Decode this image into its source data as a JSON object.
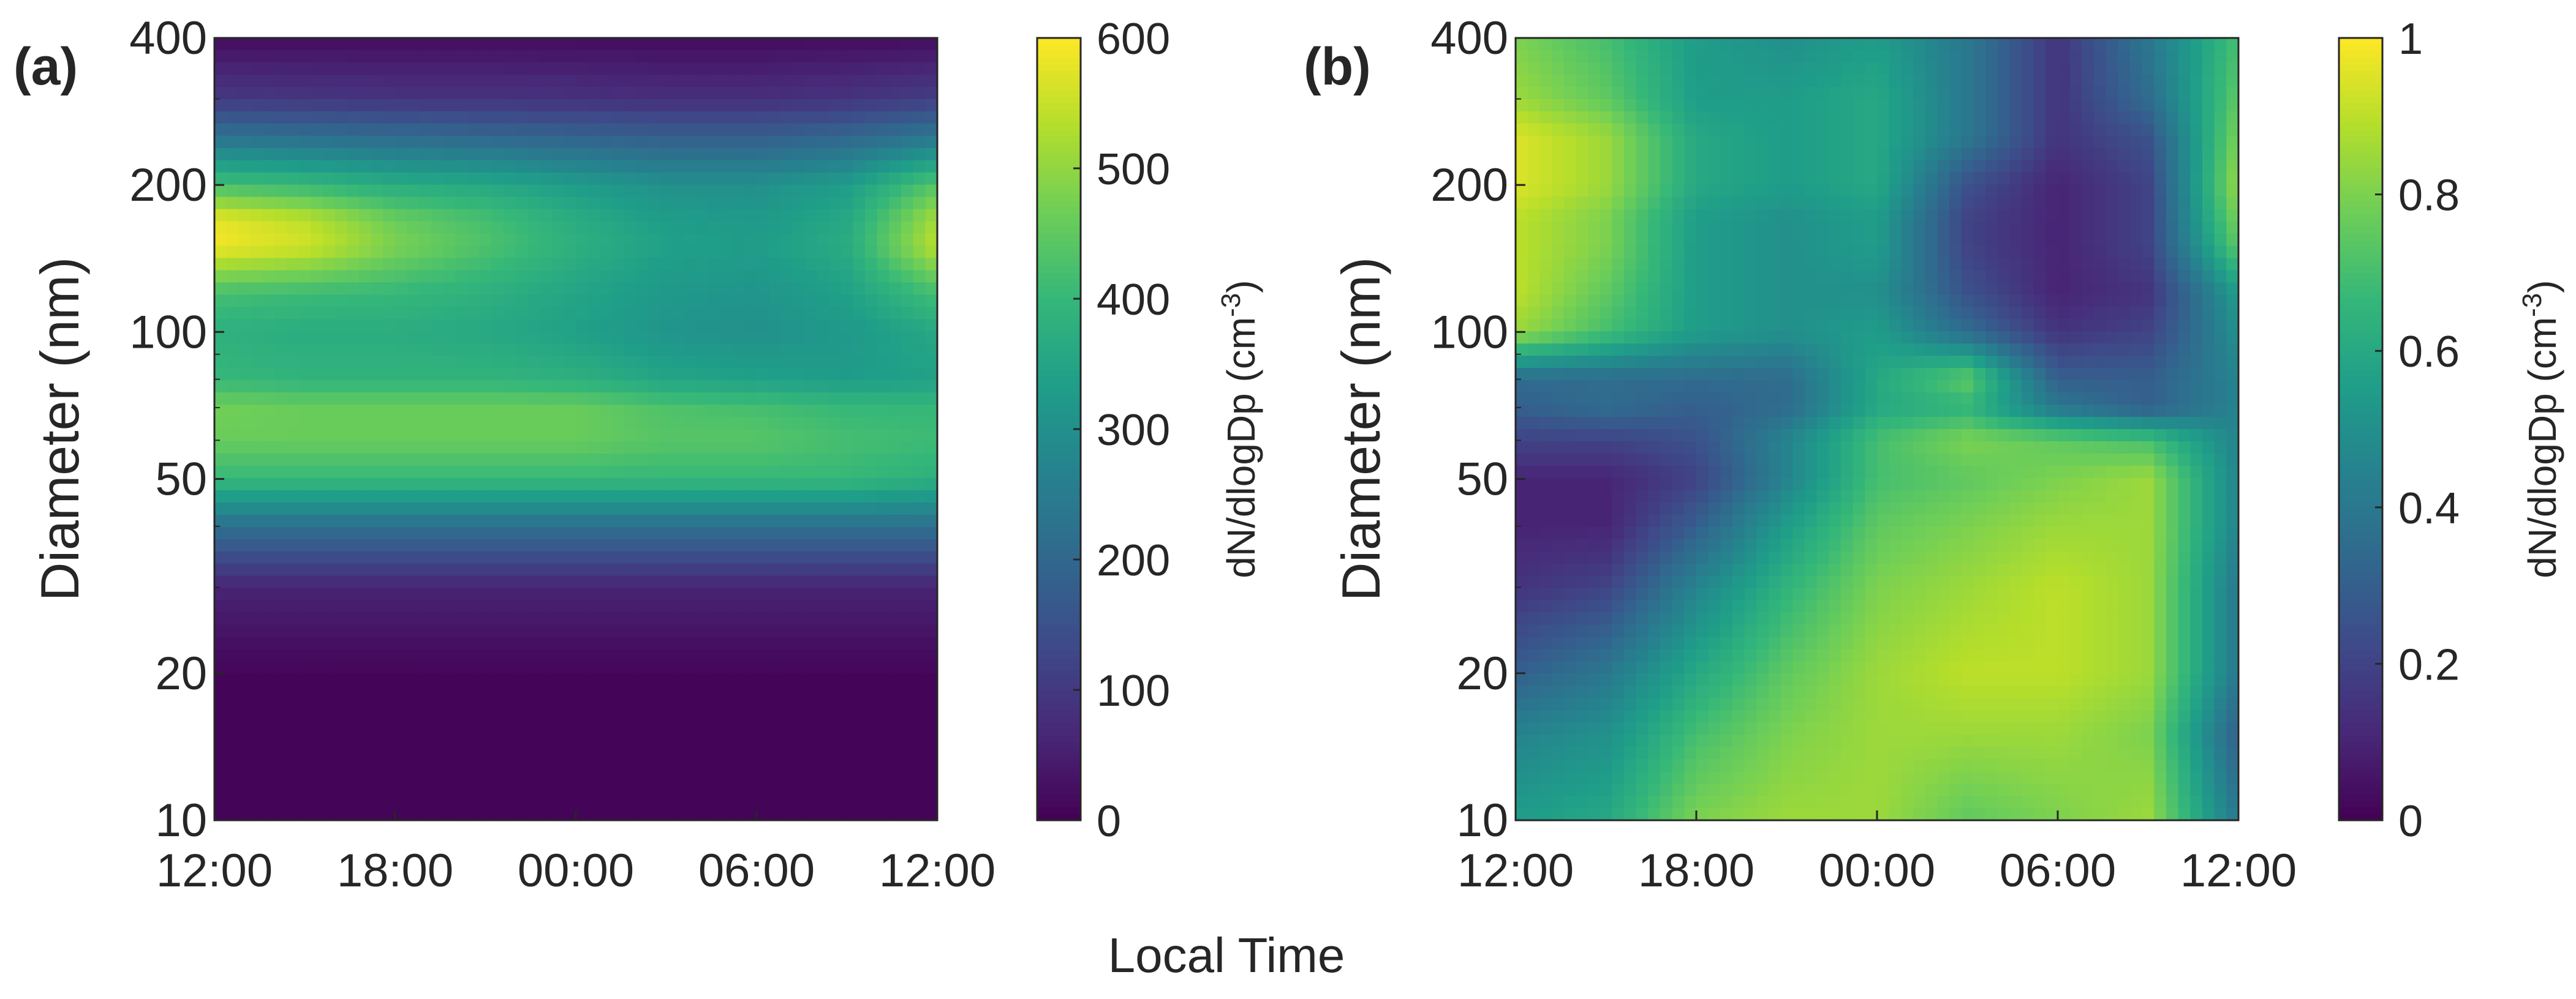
{
  "figure": {
    "shared_xlabel": "Local Time"
  },
  "chart_data": [
    {
      "type": "heatmap",
      "panel_label": "(a)",
      "title": "",
      "xlabel": "",
      "ylabel": "Diameter (nm)",
      "x_ticks": [
        "12:00",
        "18:00",
        "00:00",
        "06:00",
        "12:00"
      ],
      "x_range": [
        "12:00",
        "12:00 (+1 day)"
      ],
      "y_scale": "log",
      "y_ticks": [
        10,
        20,
        50,
        100,
        200,
        400
      ],
      "ylim": [
        10,
        400
      ],
      "colorbar": {
        "label_main": "dN/dlogDp (cm",
        "label_sup": "-3",
        "label_end": ")",
        "ticks": [
          "0",
          "100",
          "200",
          "300",
          "400",
          "500",
          "600"
        ],
        "range": [
          0,
          600
        ],
        "colormap": "viridis"
      },
      "diameters_nm": [
        10,
        15,
        20,
        30,
        40,
        50,
        60,
        70,
        80,
        100,
        120,
        150,
        170,
        200,
        250,
        300,
        400
      ],
      "times": [
        "12:00",
        "15:00",
        "18:00",
        "21:00",
        "00:00",
        "03:00",
        "06:00",
        "09:00",
        "12:00"
      ],
      "values": [
        [
          5,
          5,
          5,
          5,
          5,
          5,
          5,
          5,
          5
        ],
        [
          5,
          5,
          5,
          5,
          5,
          5,
          5,
          5,
          5
        ],
        [
          8,
          8,
          8,
          8,
          8,
          8,
          8,
          8,
          8
        ],
        [
          60,
          60,
          60,
          60,
          60,
          60,
          60,
          60,
          60
        ],
        [
          220,
          220,
          220,
          220,
          220,
          220,
          220,
          220,
          220
        ],
        [
          400,
          400,
          400,
          400,
          400,
          400,
          400,
          400,
          380
        ],
        [
          460,
          460,
          460,
          460,
          460,
          440,
          440,
          420,
          410
        ],
        [
          470,
          460,
          460,
          460,
          460,
          430,
          420,
          400,
          400
        ],
        [
          400,
          390,
          390,
          390,
          380,
          350,
          340,
          330,
          340
        ],
        [
          380,
          370,
          370,
          360,
          340,
          310,
          300,
          320,
          360
        ],
        [
          420,
          410,
          400,
          380,
          350,
          320,
          310,
          340,
          420
        ],
        [
          590,
          560,
          480,
          430,
          380,
          340,
          330,
          370,
          540
        ],
        [
          580,
          540,
          460,
          420,
          370,
          330,
          320,
          360,
          520
        ],
        [
          420,
          400,
          370,
          360,
          330,
          300,
          300,
          330,
          440
        ],
        [
          230,
          220,
          210,
          200,
          190,
          180,
          180,
          200,
          240
        ],
        [
          100,
          95,
          90,
          90,
          85,
          80,
          80,
          90,
          110
        ],
        [
          20,
          20,
          20,
          20,
          20,
          20,
          20,
          20,
          20
        ]
      ]
    },
    {
      "type": "heatmap",
      "panel_label": "(b)",
      "title": "",
      "xlabel": "",
      "ylabel": "Diameter (nm)",
      "x_ticks": [
        "12:00",
        "18:00",
        "00:00",
        "06:00",
        "12:00"
      ],
      "x_range": [
        "12:00",
        "12:00 (+1 day)"
      ],
      "y_scale": "log",
      "y_ticks": [
        10,
        20,
        50,
        100,
        200,
        400
      ],
      "ylim": [
        10,
        400
      ],
      "colorbar": {
        "label_main": "dN/dlogDp (cm",
        "label_sup": "-3",
        "label_end": ")",
        "ticks": [
          "0",
          "0.2",
          "0.4",
          "0.6",
          "0.8",
          "1"
        ],
        "range": [
          0,
          1
        ],
        "colormap": "viridis"
      },
      "diameters_nm": [
        10,
        15,
        20,
        30,
        40,
        50,
        60,
        70,
        80,
        100,
        120,
        150,
        170,
        200,
        250,
        300,
        400
      ],
      "times": [
        "12:00",
        "15:00",
        "18:00",
        "21:00",
        "00:00",
        "03:00",
        "06:00",
        "09:00",
        "12:00"
      ],
      "values": [
        [
          0.55,
          0.6,
          0.8,
          0.85,
          0.85,
          0.75,
          0.8,
          0.85,
          0.4
        ],
        [
          0.45,
          0.5,
          0.7,
          0.8,
          0.85,
          0.85,
          0.85,
          0.8,
          0.3
        ],
        [
          0.3,
          0.4,
          0.6,
          0.75,
          0.85,
          0.9,
          0.9,
          0.85,
          0.4
        ],
        [
          0.15,
          0.2,
          0.45,
          0.65,
          0.8,
          0.85,
          0.9,
          0.85,
          0.4
        ],
        [
          0.1,
          0.1,
          0.3,
          0.55,
          0.75,
          0.8,
          0.85,
          0.85,
          0.45
        ],
        [
          0.1,
          0.1,
          0.2,
          0.45,
          0.7,
          0.75,
          0.8,
          0.85,
          0.45
        ],
        [
          0.2,
          0.2,
          0.25,
          0.45,
          0.7,
          0.8,
          0.75,
          0.7,
          0.45
        ],
        [
          0.3,
          0.35,
          0.3,
          0.35,
          0.6,
          0.65,
          0.4,
          0.3,
          0.45
        ],
        [
          0.35,
          0.35,
          0.35,
          0.35,
          0.6,
          0.75,
          0.3,
          0.3,
          0.45
        ],
        [
          0.85,
          0.7,
          0.55,
          0.5,
          0.55,
          0.35,
          0.15,
          0.2,
          0.5
        ],
        [
          0.9,
          0.75,
          0.55,
          0.5,
          0.5,
          0.25,
          0.1,
          0.15,
          0.55
        ],
        [
          0.9,
          0.8,
          0.55,
          0.5,
          0.55,
          0.2,
          0.1,
          0.2,
          0.75
        ],
        [
          0.9,
          0.8,
          0.55,
          0.5,
          0.55,
          0.2,
          0.1,
          0.2,
          0.8
        ],
        [
          0.95,
          0.85,
          0.6,
          0.55,
          0.6,
          0.25,
          0.1,
          0.2,
          0.85
        ],
        [
          0.95,
          0.85,
          0.6,
          0.55,
          0.6,
          0.4,
          0.15,
          0.25,
          0.8
        ],
        [
          0.85,
          0.75,
          0.55,
          0.55,
          0.6,
          0.4,
          0.15,
          0.35,
          0.75
        ],
        [
          0.8,
          0.7,
          0.55,
          0.5,
          0.55,
          0.4,
          0.15,
          0.4,
          0.7
        ]
      ]
    }
  ]
}
